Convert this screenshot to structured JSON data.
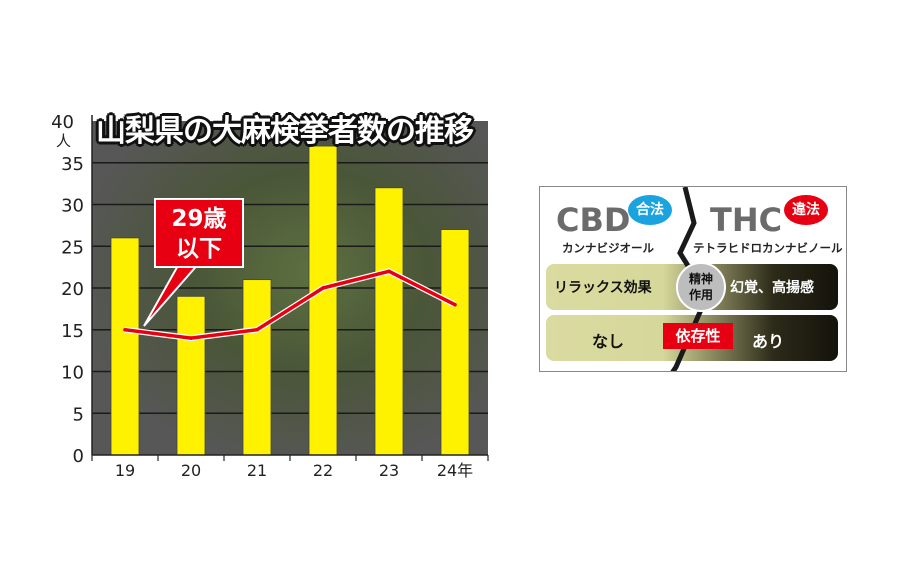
{
  "chart_data": {
    "type": "bar+line",
    "title": "山梨県の大麻検挙者数の推移",
    "categories": [
      "19",
      "20",
      "21",
      "22",
      "23",
      "24年"
    ],
    "series": [
      {
        "type": "bar",
        "values": [
          26,
          19,
          21,
          37,
          32,
          27
        ],
        "color": "#fff200"
      },
      {
        "type": "line",
        "name": "29歳以下",
        "values": [
          15,
          14,
          15,
          20,
          22,
          18
        ],
        "color": "#e60012"
      }
    ],
    "y_unit": "人",
    "ylim": [
      0,
      40
    ],
    "yticks": [
      0,
      5,
      10,
      15,
      20,
      25,
      30,
      35,
      40
    ],
    "grid": true,
    "callout": {
      "line1": "29歳",
      "line2": "以下"
    }
  },
  "comparison": {
    "left": {
      "name": "CBD",
      "full": "カンナビジオール",
      "status": "合法",
      "status_color": "#1aa3df"
    },
    "right": {
      "name": "THC",
      "full": "テトラヒドロカンナビノール",
      "status": "違法",
      "status_color": "#e60012"
    },
    "rows": [
      {
        "label": "精神作用",
        "label_line1": "精神",
        "label_line2": "作用",
        "left": "リラックス効果",
        "right": "幻覚、高揚感"
      },
      {
        "label": "依存性",
        "left": "なし",
        "right": "あり"
      }
    ]
  }
}
